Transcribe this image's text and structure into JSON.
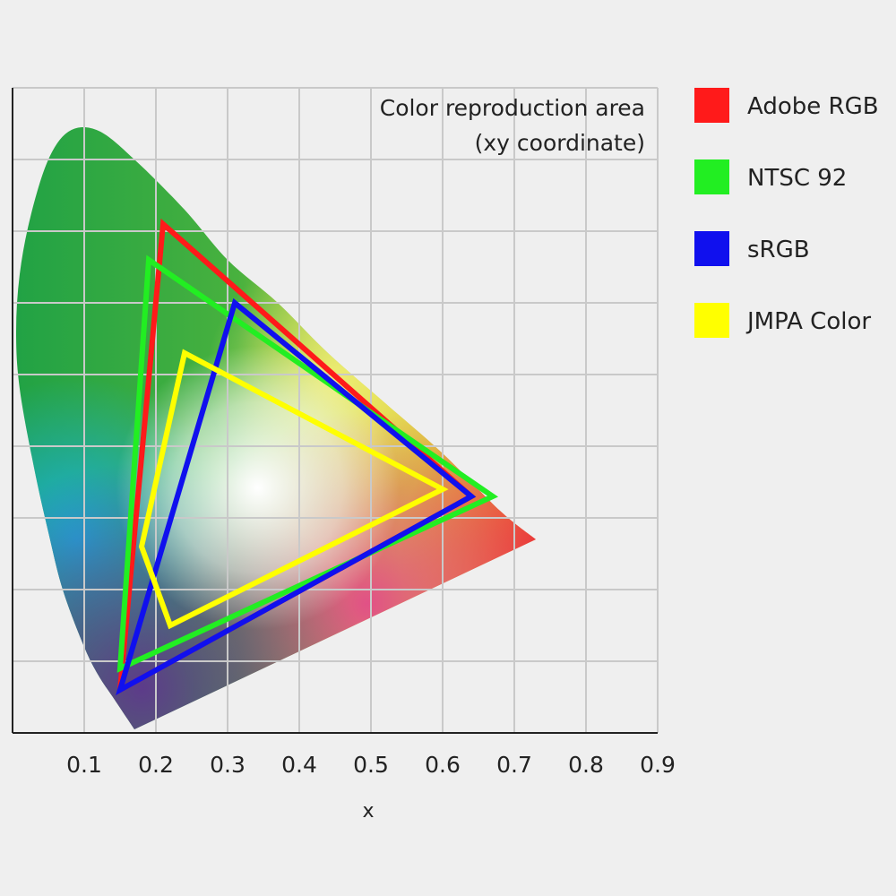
{
  "chart_data": {
    "type": "line",
    "title": "",
    "xlabel": "x",
    "ylabel": "",
    "xlim": [
      0,
      0.9
    ],
    "ylim": [
      0,
      0.9
    ],
    "grid": true,
    "legend_position": "outside-right",
    "x_ticks": [
      "0.1",
      "0.2",
      "0.3",
      "0.4",
      "0.5",
      "0.6",
      "0.7",
      "0.8",
      "0.9"
    ],
    "annotation": [
      "Color reproduction area",
      "(xy coordinate)"
    ],
    "series": [
      {
        "name": "Adobe RGB",
        "color": "#ff1a1a",
        "points": [
          [
            0.64,
            0.33
          ],
          [
            0.21,
            0.71
          ],
          [
            0.15,
            0.06
          ]
        ]
      },
      {
        "name": "NTSC 92",
        "color": "#22ee22",
        "points": [
          [
            0.67,
            0.33
          ],
          [
            0.19,
            0.66
          ],
          [
            0.15,
            0.09
          ]
        ]
      },
      {
        "name": "sRGB",
        "color": "#1010ee",
        "points": [
          [
            0.64,
            0.33
          ],
          [
            0.31,
            0.6
          ],
          [
            0.15,
            0.06
          ]
        ]
      },
      {
        "name": "JMPA Color",
        "color": "#ffff00",
        "points": [
          [
            0.6,
            0.34
          ],
          [
            0.24,
            0.53
          ],
          [
            0.18,
            0.26
          ],
          [
            0.22,
            0.15
          ]
        ]
      }
    ],
    "spectral_locus": [
      [
        0.17,
        0.005
      ],
      [
        0.16,
        0.02
      ],
      [
        0.14,
        0.05
      ],
      [
        0.12,
        0.08
      ],
      [
        0.1,
        0.12
      ],
      [
        0.07,
        0.2
      ],
      [
        0.05,
        0.28
      ],
      [
        0.03,
        0.37
      ],
      [
        0.01,
        0.48
      ],
      [
        0.005,
        0.56
      ],
      [
        0.01,
        0.64
      ],
      [
        0.025,
        0.72
      ],
      [
        0.05,
        0.8
      ],
      [
        0.08,
        0.84
      ],
      [
        0.12,
        0.84
      ],
      [
        0.17,
        0.8
      ],
      [
        0.24,
        0.73
      ],
      [
        0.3,
        0.66
      ],
      [
        0.37,
        0.6
      ],
      [
        0.44,
        0.53
      ],
      [
        0.52,
        0.46
      ],
      [
        0.6,
        0.39
      ],
      [
        0.68,
        0.31
      ],
      [
        0.73,
        0.27
      ]
    ]
  }
}
